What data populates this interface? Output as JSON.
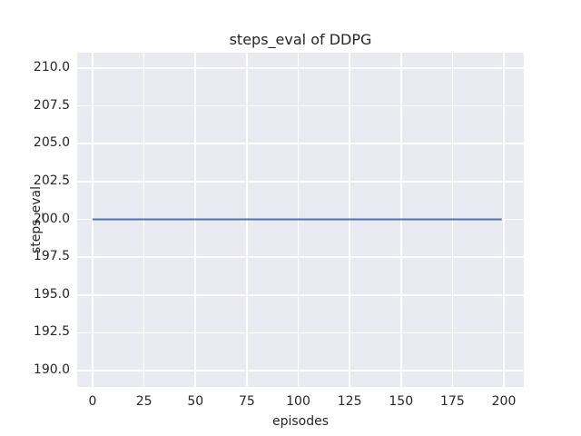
{
  "chart_data": {
    "type": "line",
    "title": "steps_eval of DDPG",
    "xlabel": "episodes",
    "ylabel": "steps_eval",
    "x_ticks": [
      0,
      25,
      50,
      75,
      100,
      125,
      150,
      175,
      200
    ],
    "y_ticks": [
      210.0,
      207.5,
      205.0,
      202.5,
      200.0,
      197.5,
      195.0,
      192.5,
      190.0
    ],
    "y_tick_decimals": 1,
    "xlim": [
      -7.5,
      209.7
    ],
    "ylim": [
      188.92,
      211.02
    ],
    "grid": true,
    "legend": "none",
    "series": [
      {
        "name": "steps_eval of DDPG",
        "x": [
          0,
          199
        ],
        "values": [
          200,
          200
        ],
        "color": "#4c72b0",
        "line_width": 2
      }
    ],
    "style": {
      "figure_background": "#ffffff",
      "plot_background": "#eaeaf2",
      "grid_color": "#ffffff",
      "text_color": "#262626"
    }
  }
}
